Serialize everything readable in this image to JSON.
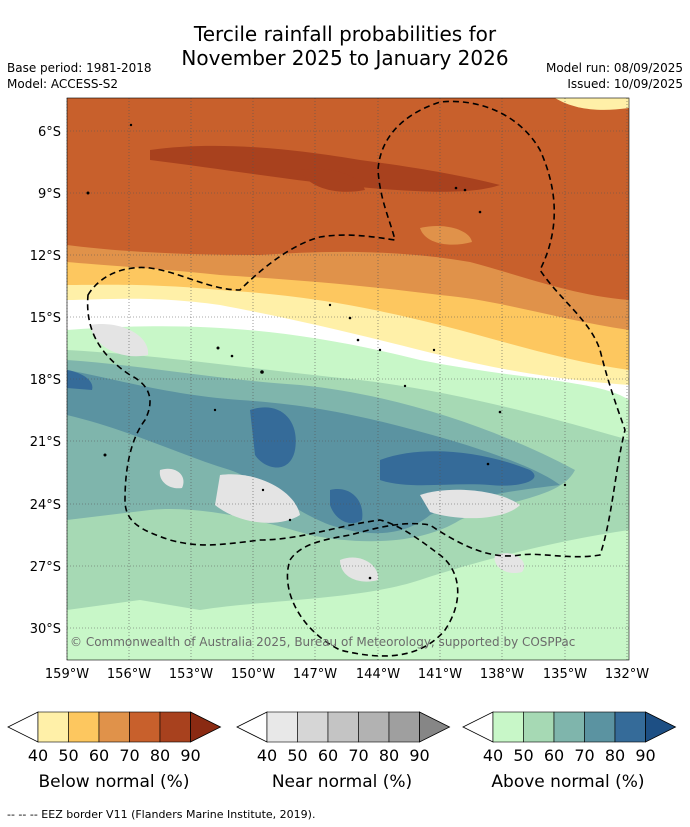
{
  "header": {
    "title_line1": "Tercile rainfall probabilities for",
    "title_line2": "November 2025 to January 2026",
    "base_period": "Base period: 1981-2018",
    "model": "Model: ACCESS-S2",
    "model_run": "Model run: 08/09/2025",
    "issued": "Issued: 10/09/2025"
  },
  "map": {
    "lat_labels": [
      "6°S",
      "9°S",
      "12°S",
      "15°S",
      "18°S",
      "21°S",
      "24°S",
      "27°S",
      "30°S"
    ],
    "lon_labels": [
      "159°W",
      "156°W",
      "153°W",
      "150°W",
      "147°W",
      "144°W",
      "141°W",
      "138°W",
      "135°W",
      "132°W"
    ],
    "copyright": "© Commonwealth of Australia 2025, Bureau of Meteorology, supported by COSPPac"
  },
  "legend": {
    "tick_labels": [
      "40",
      "50",
      "60",
      "70",
      "80",
      "90"
    ],
    "below": {
      "title": "Below normal (%)",
      "colors": [
        "#fff0a8",
        "#fdc75f",
        "#e0924a",
        "#c8602c",
        "#a8411e",
        "#8a2a12"
      ]
    },
    "near": {
      "title": "Near normal (%)",
      "colors": [
        "#e8e8e8",
        "#d6d6d6",
        "#c4c4c4",
        "#b2b2b2",
        "#9f9f9f",
        "#868686"
      ]
    },
    "above": {
      "title": "Above normal (%)",
      "colors": [
        "#c8f7c8",
        "#a6d9b4",
        "#7fb5ac",
        "#5b93a1",
        "#356b99",
        "#1d4f84"
      ]
    }
  },
  "footer": {
    "eez_note": "--  --  -- EEZ border V11 (Flanders Marine Institute, 2019)."
  }
}
